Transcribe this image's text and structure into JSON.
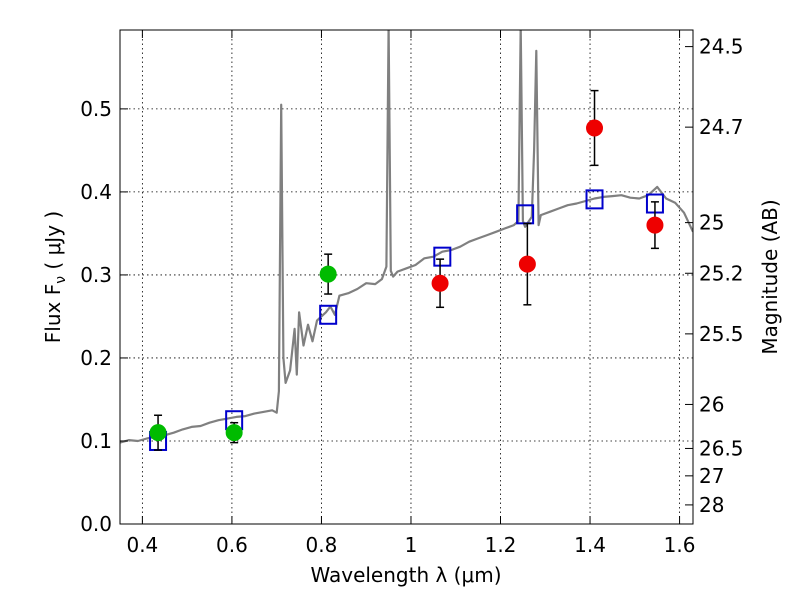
{
  "chart_data": {
    "type": "scatter",
    "xlabel": "Wavelength  λ (μm)",
    "ylabel": "Flux  F",
    "ylabel_sub": "ν",
    "ylabel_unit": "  ( μJy )",
    "y2label": "Magnitude (AB)",
    "xlim": [
      0.35,
      1.63
    ],
    "ylim": [
      0.0,
      0.595
    ],
    "grid": true,
    "x_ticks": [
      0.4,
      0.6,
      0.8,
      1.0,
      1.2,
      1.4,
      1.6
    ],
    "x_tick_labels": [
      "0.4",
      "0.6",
      "0.8",
      "1",
      "1.2",
      "1.4",
      "1.6"
    ],
    "y_ticks": [
      0.0,
      0.1,
      0.2,
      0.3,
      0.4,
      0.5
    ],
    "y_tick_labels": [
      "0.0",
      "0.1",
      "0.2",
      "0.3",
      "0.4",
      "0.5"
    ],
    "y2_ticks": [
      {
        "label": "24.5",
        "flux": 0.575
      },
      {
        "label": "24.7",
        "flux": 0.478
      },
      {
        "label": "25",
        "flux": 0.363
      },
      {
        "label": "25.2",
        "flux": 0.302
      },
      {
        "label": "25.5",
        "flux": 0.229
      },
      {
        "label": "26",
        "flux": 0.144
      },
      {
        "label": "26.5",
        "flux": 0.091
      },
      {
        "label": "27",
        "flux": 0.058
      },
      {
        "label": "28",
        "flux": 0.023
      }
    ],
    "series": [
      {
        "kind": "model-spectrum",
        "color": "#808080",
        "x": [
          0.35,
          0.37,
          0.39,
          0.41,
          0.43,
          0.45,
          0.47,
          0.49,
          0.51,
          0.53,
          0.55,
          0.57,
          0.59,
          0.61,
          0.63,
          0.65,
          0.67,
          0.69,
          0.7,
          0.705,
          0.71,
          0.715,
          0.72,
          0.73,
          0.74,
          0.745,
          0.75,
          0.76,
          0.77,
          0.78,
          0.79,
          0.8,
          0.81,
          0.82,
          0.83,
          0.84,
          0.86,
          0.88,
          0.9,
          0.92,
          0.935,
          0.945,
          0.95,
          0.955,
          0.96,
          0.97,
          0.99,
          1.01,
          1.03,
          1.05,
          1.07,
          1.09,
          1.11,
          1.13,
          1.15,
          1.17,
          1.19,
          1.21,
          1.23,
          1.24,
          1.245,
          1.25,
          1.255,
          1.26,
          1.27,
          1.275,
          1.28,
          1.285,
          1.29,
          1.31,
          1.33,
          1.35,
          1.37,
          1.39,
          1.41,
          1.43,
          1.45,
          1.47,
          1.49,
          1.51,
          1.53,
          1.55,
          1.57,
          1.59,
          1.61,
          1.63
        ],
        "y": [
          0.098,
          0.101,
          0.1,
          0.103,
          0.105,
          0.107,
          0.11,
          0.114,
          0.117,
          0.118,
          0.122,
          0.125,
          0.127,
          0.129,
          0.13,
          0.133,
          0.135,
          0.137,
          0.134,
          0.16,
          0.505,
          0.2,
          0.17,
          0.185,
          0.235,
          0.18,
          0.255,
          0.215,
          0.24,
          0.22,
          0.245,
          0.25,
          0.255,
          0.262,
          0.252,
          0.275,
          0.278,
          0.283,
          0.29,
          0.289,
          0.295,
          0.31,
          0.6,
          0.305,
          0.298,
          0.304,
          0.308,
          0.312,
          0.32,
          0.322,
          0.328,
          0.33,
          0.334,
          0.34,
          0.344,
          0.348,
          0.352,
          0.356,
          0.36,
          0.365,
          0.6,
          0.365,
          0.358,
          0.362,
          0.37,
          0.45,
          0.57,
          0.36,
          0.372,
          0.376,
          0.38,
          0.384,
          0.386,
          0.389,
          0.392,
          0.394,
          0.395,
          0.396,
          0.393,
          0.392,
          0.396,
          0.406,
          0.392,
          0.387,
          0.375,
          0.352
        ]
      },
      {
        "kind": "model-photometry",
        "color": "#0000cc",
        "x": [
          0.435,
          0.605,
          0.815,
          1.07,
          1.255,
          1.41,
          1.545
        ],
        "y": [
          0.1,
          0.125,
          0.252,
          0.322,
          0.373,
          0.391,
          0.386
        ]
      },
      {
        "kind": "observed-green",
        "color": "#00bb00",
        "x": [
          0.435,
          0.605,
          0.815
        ],
        "y": [
          0.11,
          0.11,
          0.301
        ],
        "err": [
          0.021,
          0.012,
          0.024
        ]
      },
      {
        "kind": "observed-red",
        "color": "#ee0000",
        "x": [
          1.065,
          1.26,
          1.41,
          1.545
        ],
        "y": [
          0.29,
          0.313,
          0.477,
          0.36
        ],
        "err": [
          0.029,
          0.049,
          0.045,
          0.028
        ]
      }
    ]
  }
}
